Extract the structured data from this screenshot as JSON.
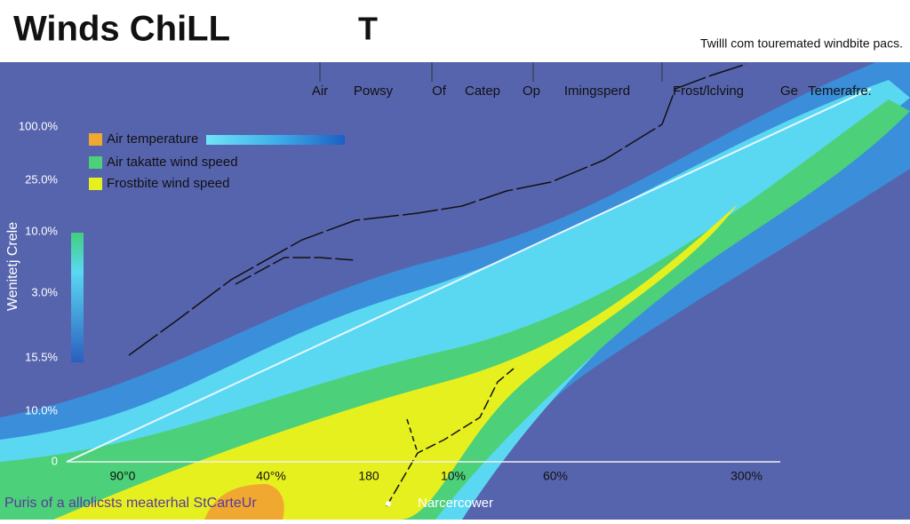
{
  "header": {
    "title": "Winds ChiLL",
    "title_mark": "T",
    "subtitle": "Twilll com touremated windbite pacs."
  },
  "top_labels": [
    "Air",
    "Powsy",
    "Of",
    "Catep",
    "Op",
    "Imingsperd",
    "Frost/lclving",
    "Ge",
    "Temerafre."
  ],
  "y_axis_title": "Wenitetj Crele",
  "y_labels": [
    "100.0%",
    "25.0%",
    "10.0%",
    "3.0%",
    "15.5%",
    "10.0%",
    "0"
  ],
  "x_labels": [
    "90°0",
    "40°%",
    "180",
    "10%",
    "60%",
    "300%"
  ],
  "legend": [
    "Air temperature",
    "Air takatte wind speed",
    "Frostbite wind speed"
  ],
  "footer": [
    "Puris of a allolicsts meaterhal StCarteUr",
    "Narcercower"
  ]
}
